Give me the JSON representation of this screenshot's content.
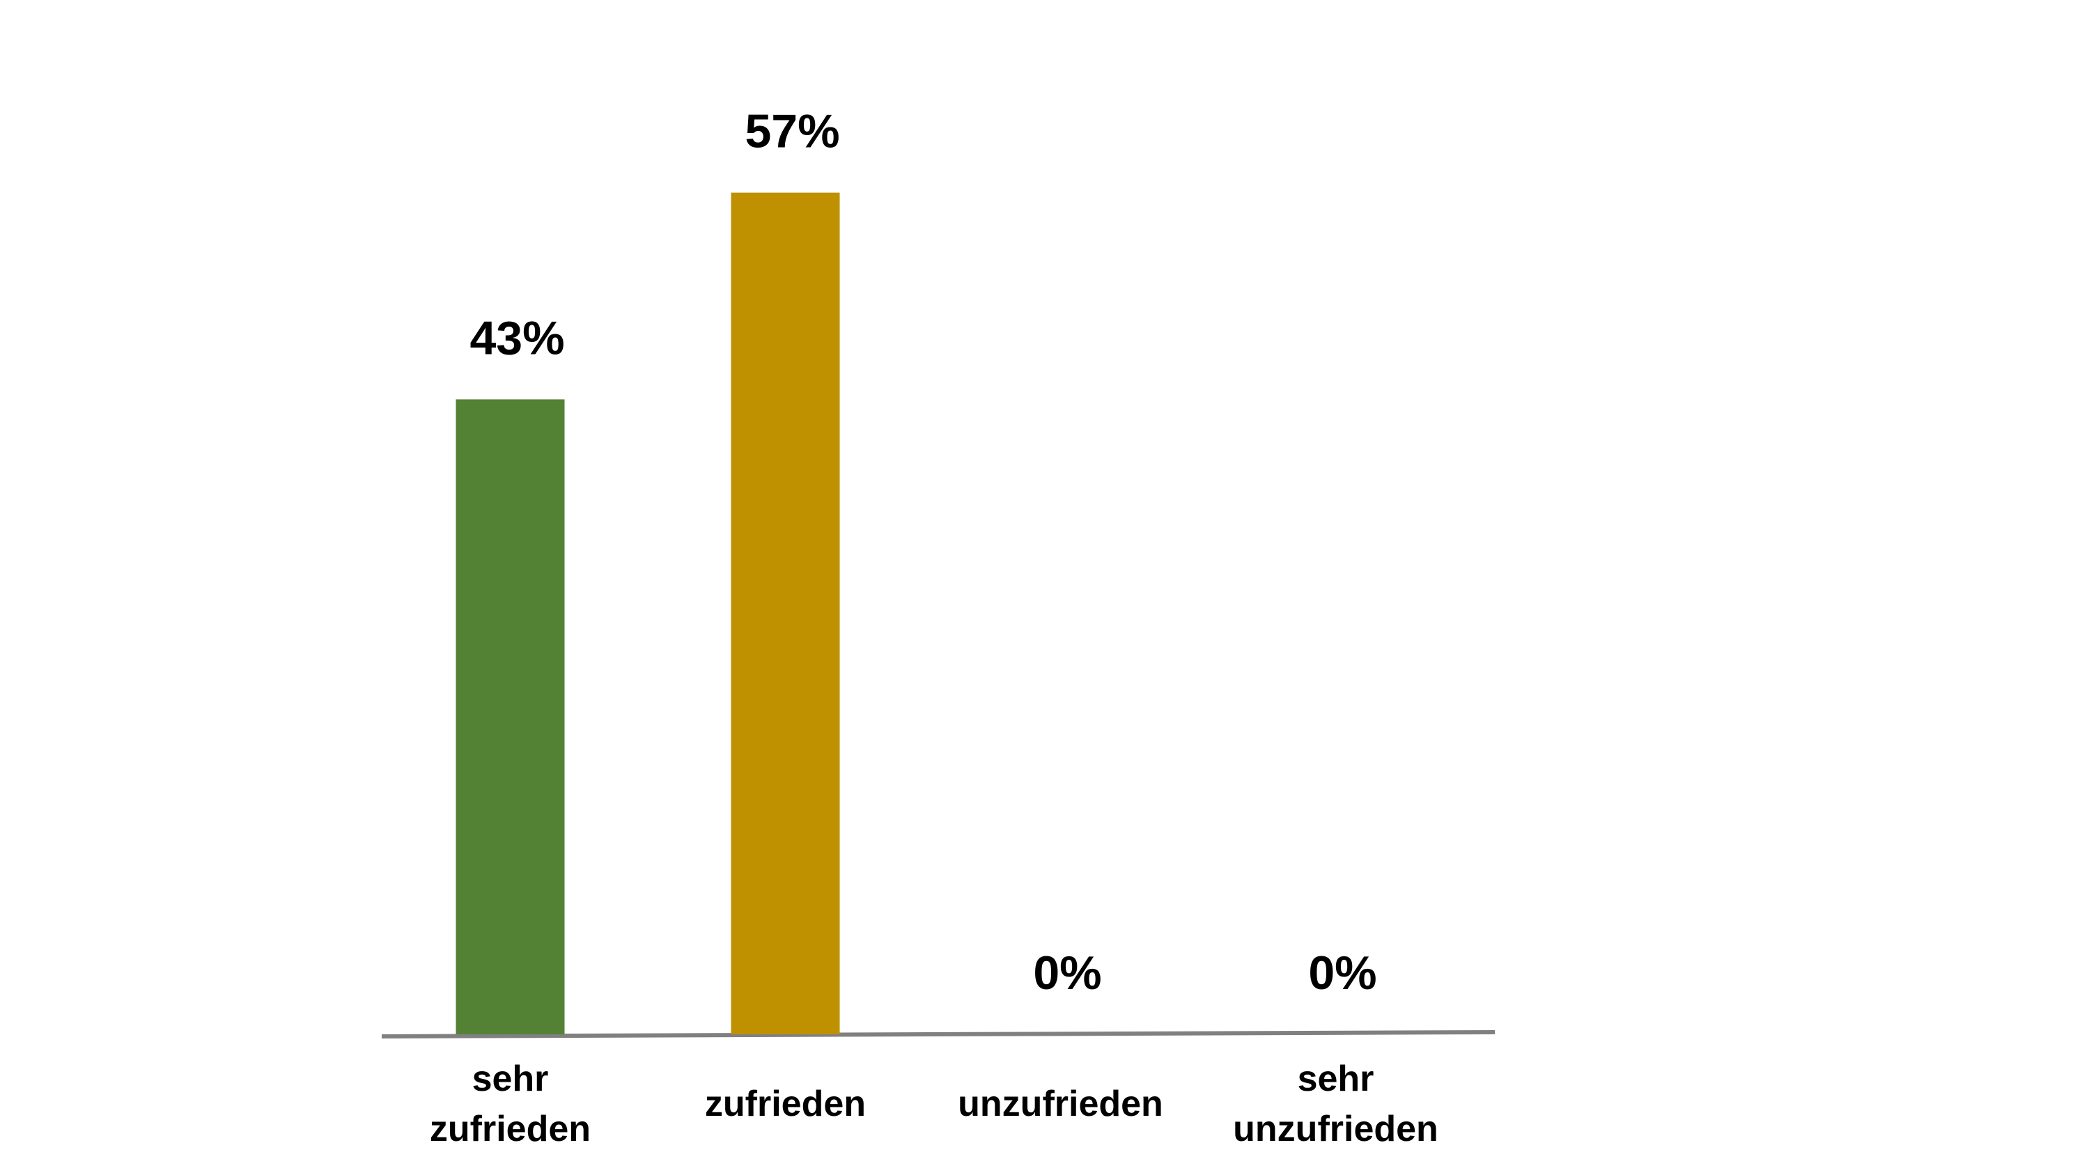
{
  "chart_data": {
    "type": "bar",
    "categories": [
      "sehr\nzufrieden",
      "zufrieden",
      "unzufrieden",
      "sehr\nunzufrieden"
    ],
    "values": [
      43,
      57,
      0,
      0
    ],
    "value_labels": [
      "43%",
      "57%",
      "0%",
      "0%"
    ],
    "colors": [
      "#548235",
      "#bf9000",
      null,
      null
    ]
  }
}
